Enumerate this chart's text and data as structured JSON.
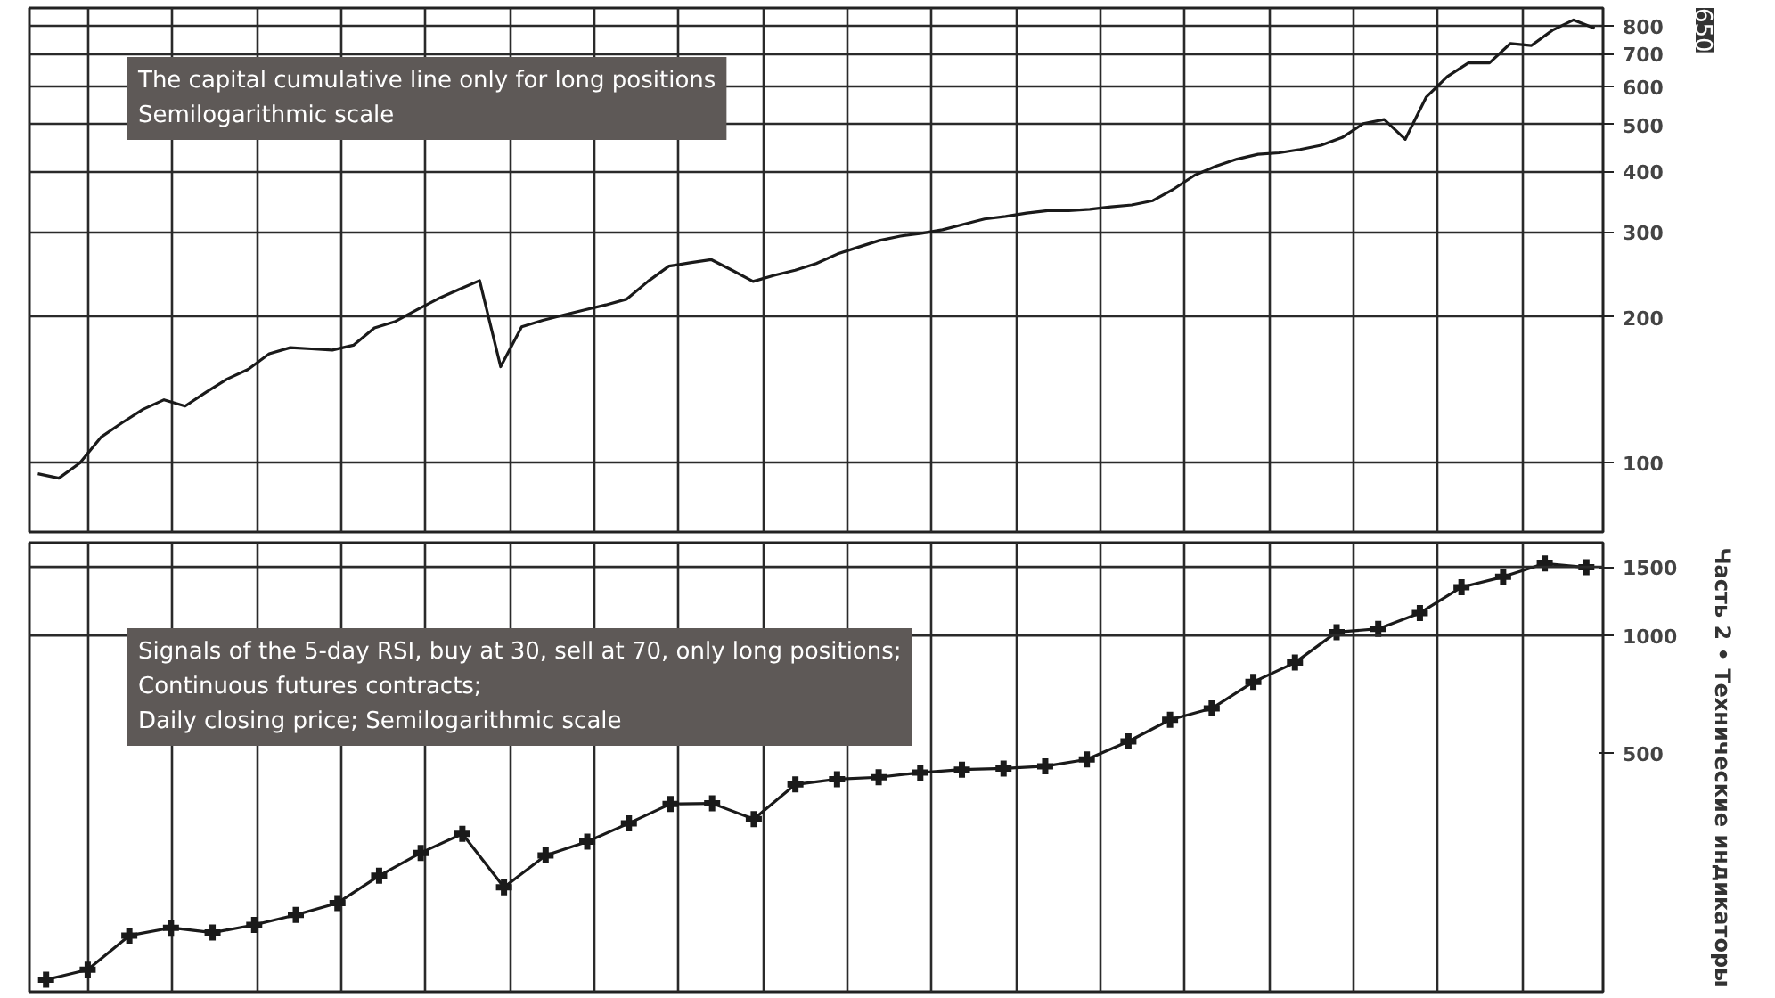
{
  "chart_data": [
    {
      "type": "line",
      "annotations": [
        "The capital cumulative line only for long positions\nSemilogarithmic scale",
        "650"
      ],
      "categories": [
        null,
        null,
        null,
        null,
        null,
        null,
        null,
        null,
        null,
        null,
        null,
        null,
        null,
        null,
        null,
        null,
        null,
        null,
        null,
        null,
        null,
        null,
        null,
        null,
        null,
        null,
        null,
        null,
        null,
        null,
        null,
        null,
        null,
        null,
        null,
        null,
        null,
        null,
        null,
        null,
        null,
        null,
        null,
        null,
        null,
        null,
        null,
        null,
        null,
        null,
        null,
        null,
        null,
        null,
        null,
        null,
        null,
        null,
        null,
        null,
        null,
        null,
        null,
        null,
        null,
        null,
        null,
        null,
        null,
        null,
        null,
        null,
        null,
        null,
        null
      ],
      "series": [
        {
          "color": "#1a1a1a",
          "values": [
            95,
            93,
            100,
            113,
            121,
            129,
            135,
            131,
            140,
            149,
            156,
            168,
            173,
            172,
            171,
            175,
            190,
            196,
            207,
            218,
            228,
            238,
            158,
            191,
            197,
            202,
            207,
            212,
            218,
            237,
            255,
            259,
            263,
            250,
            237,
            244,
            250,
            258,
            270,
            279,
            288,
            294,
            298,
            303,
            311,
            319,
            323,
            328,
            332,
            332,
            334,
            338,
            341,
            348,
            368,
            393,
            410,
            424,
            434,
            437,
            444,
            453,
            470,
            502,
            512,
            466,
            570,
            628,
            670,
            670,
            735,
            728,
            783,
            822,
            790
          ]
        }
      ],
      "log": true,
      "ylim": [
        72,
        870
      ],
      "yticks": [
        100,
        200,
        300,
        400,
        500,
        600,
        700,
        800
      ],
      "grid": true,
      "tick_labels": "y",
      "line_style": "solid"
    },
    {
      "type": "line",
      "annotations": [
        "Signals of the 5-day RSI, buy at 30, sell at 70, only long positions;\nContinuous futures contracts;\nDaily closing price; Semilogarithmic scale",
        "Часть 2 • Технические индикаторы"
      ],
      "categories": [
        null,
        null,
        null,
        null,
        null,
        null,
        null,
        null,
        null,
        null,
        null,
        null,
        null,
        null,
        null,
        null,
        null,
        null,
        null,
        null,
        null,
        null,
        null,
        null,
        null,
        null,
        null,
        null,
        null,
        null,
        null,
        null,
        null,
        null,
        null,
        null,
        null,
        null
      ],
      "series": [
        {
          "color": "#1a1a1a",
          "values": [
            131,
            139,
            170,
            178,
            173,
            181,
            192,
            206,
            242,
            277,
            310,
            226,
            273,
            296,
            330,
            370,
            371,
            338,
            415,
            428,
            433,
            445,
            453,
            456,
            462,
            481,
            535,
            608,
            650,
            760,
            852,
            1020,
            1040,
            1142,
            1330,
            1414,
            1530,
            1496
          ]
        }
      ],
      "log": true,
      "ylim": [
        122,
        1730
      ],
      "yticks": [
        500,
        1000,
        1500
      ],
      "grid": "x",
      "tick_labels": "y",
      "marker": "cross",
      "line_style": "solid",
      "ref_lines": [
        {
          "axis": "y",
          "value": 1000
        },
        {
          "axis": "y",
          "value": 1500
        }
      ]
    }
  ]
}
